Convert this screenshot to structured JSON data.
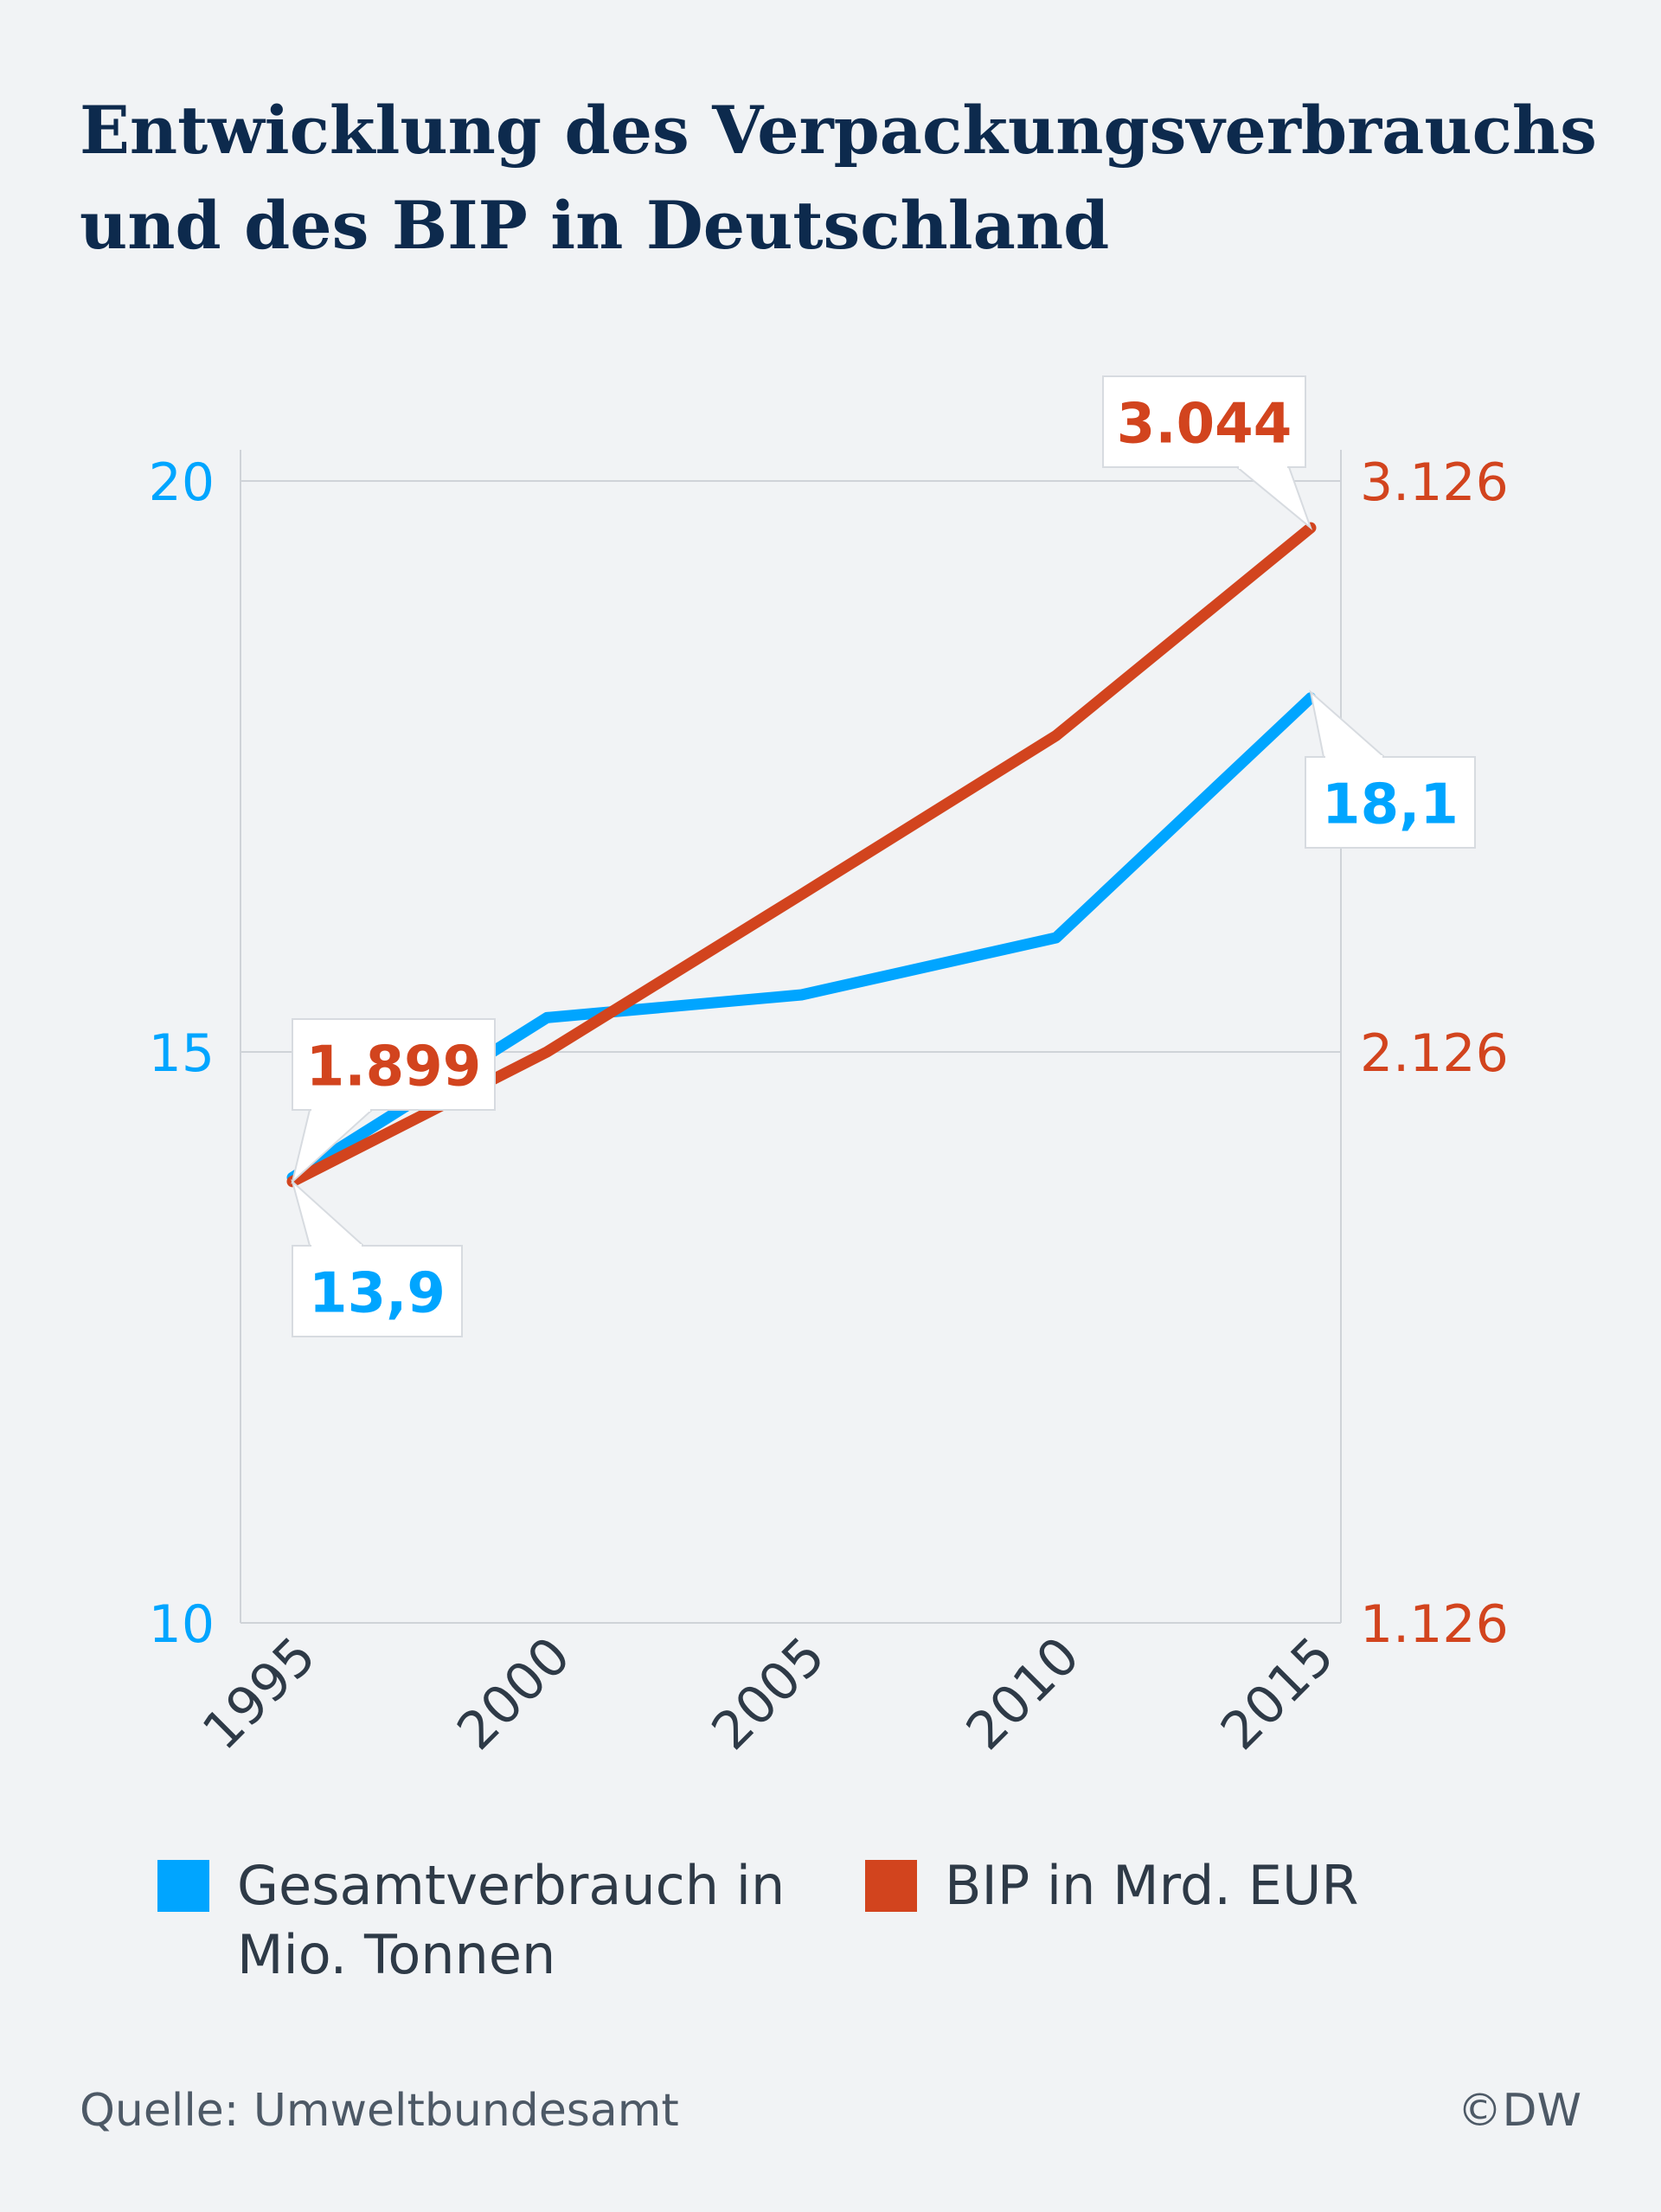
{
  "title_lines": [
    "Entwicklung des Verpackungsverbrauchs",
    "und des BIP in Deutschland"
  ],
  "colors": {
    "blue": "#00a5ff",
    "red": "#d2441e",
    "grid": "#cfd3d8",
    "axis_text": "#2e3a47",
    "title": "#0d2a4d",
    "background": "#f1f3f5"
  },
  "chart_data": {
    "type": "line",
    "categories": [
      "1995",
      "2000",
      "2005",
      "2010",
      "2015"
    ],
    "y_left": {
      "ticks": [
        "10",
        "15",
        "20"
      ],
      "ylim": [
        10,
        20
      ]
    },
    "y_right": {
      "ticks": [
        "1.126",
        "2.126",
        "3.126"
      ],
      "ylim": [
        1126,
        3126
      ]
    },
    "series": [
      {
        "name": "Gesamtverbrauch in Mio. Tonnen",
        "axis": "left",
        "color": "#00a5ff",
        "values": [
          13.9,
          15.3,
          15.5,
          16.0,
          18.1
        ],
        "labels": [
          {
            "index": 0,
            "text": "13,9"
          },
          {
            "index": 4,
            "text": "18,1"
          }
        ]
      },
      {
        "name": "BIP in Mrd. EUR",
        "axis": "right",
        "color": "#d2441e",
        "values": [
          1899,
          2126,
          2402,
          2680,
          3044
        ],
        "labels": [
          {
            "index": 0,
            "text": "1.899"
          },
          {
            "index": 4,
            "text": "3.044"
          }
        ]
      }
    ],
    "grid": true,
    "legend_position": "bottom"
  },
  "legend": [
    {
      "label": "Gesamtverbrauch in",
      "label2": "Mio. Tonnen",
      "color": "#00a5ff"
    },
    {
      "label": "BIP in Mrd. EUR",
      "label2": "",
      "color": "#d2441e"
    }
  ],
  "footer": {
    "source": "Quelle: Umweltbundesamt",
    "copyright": "©DW"
  }
}
